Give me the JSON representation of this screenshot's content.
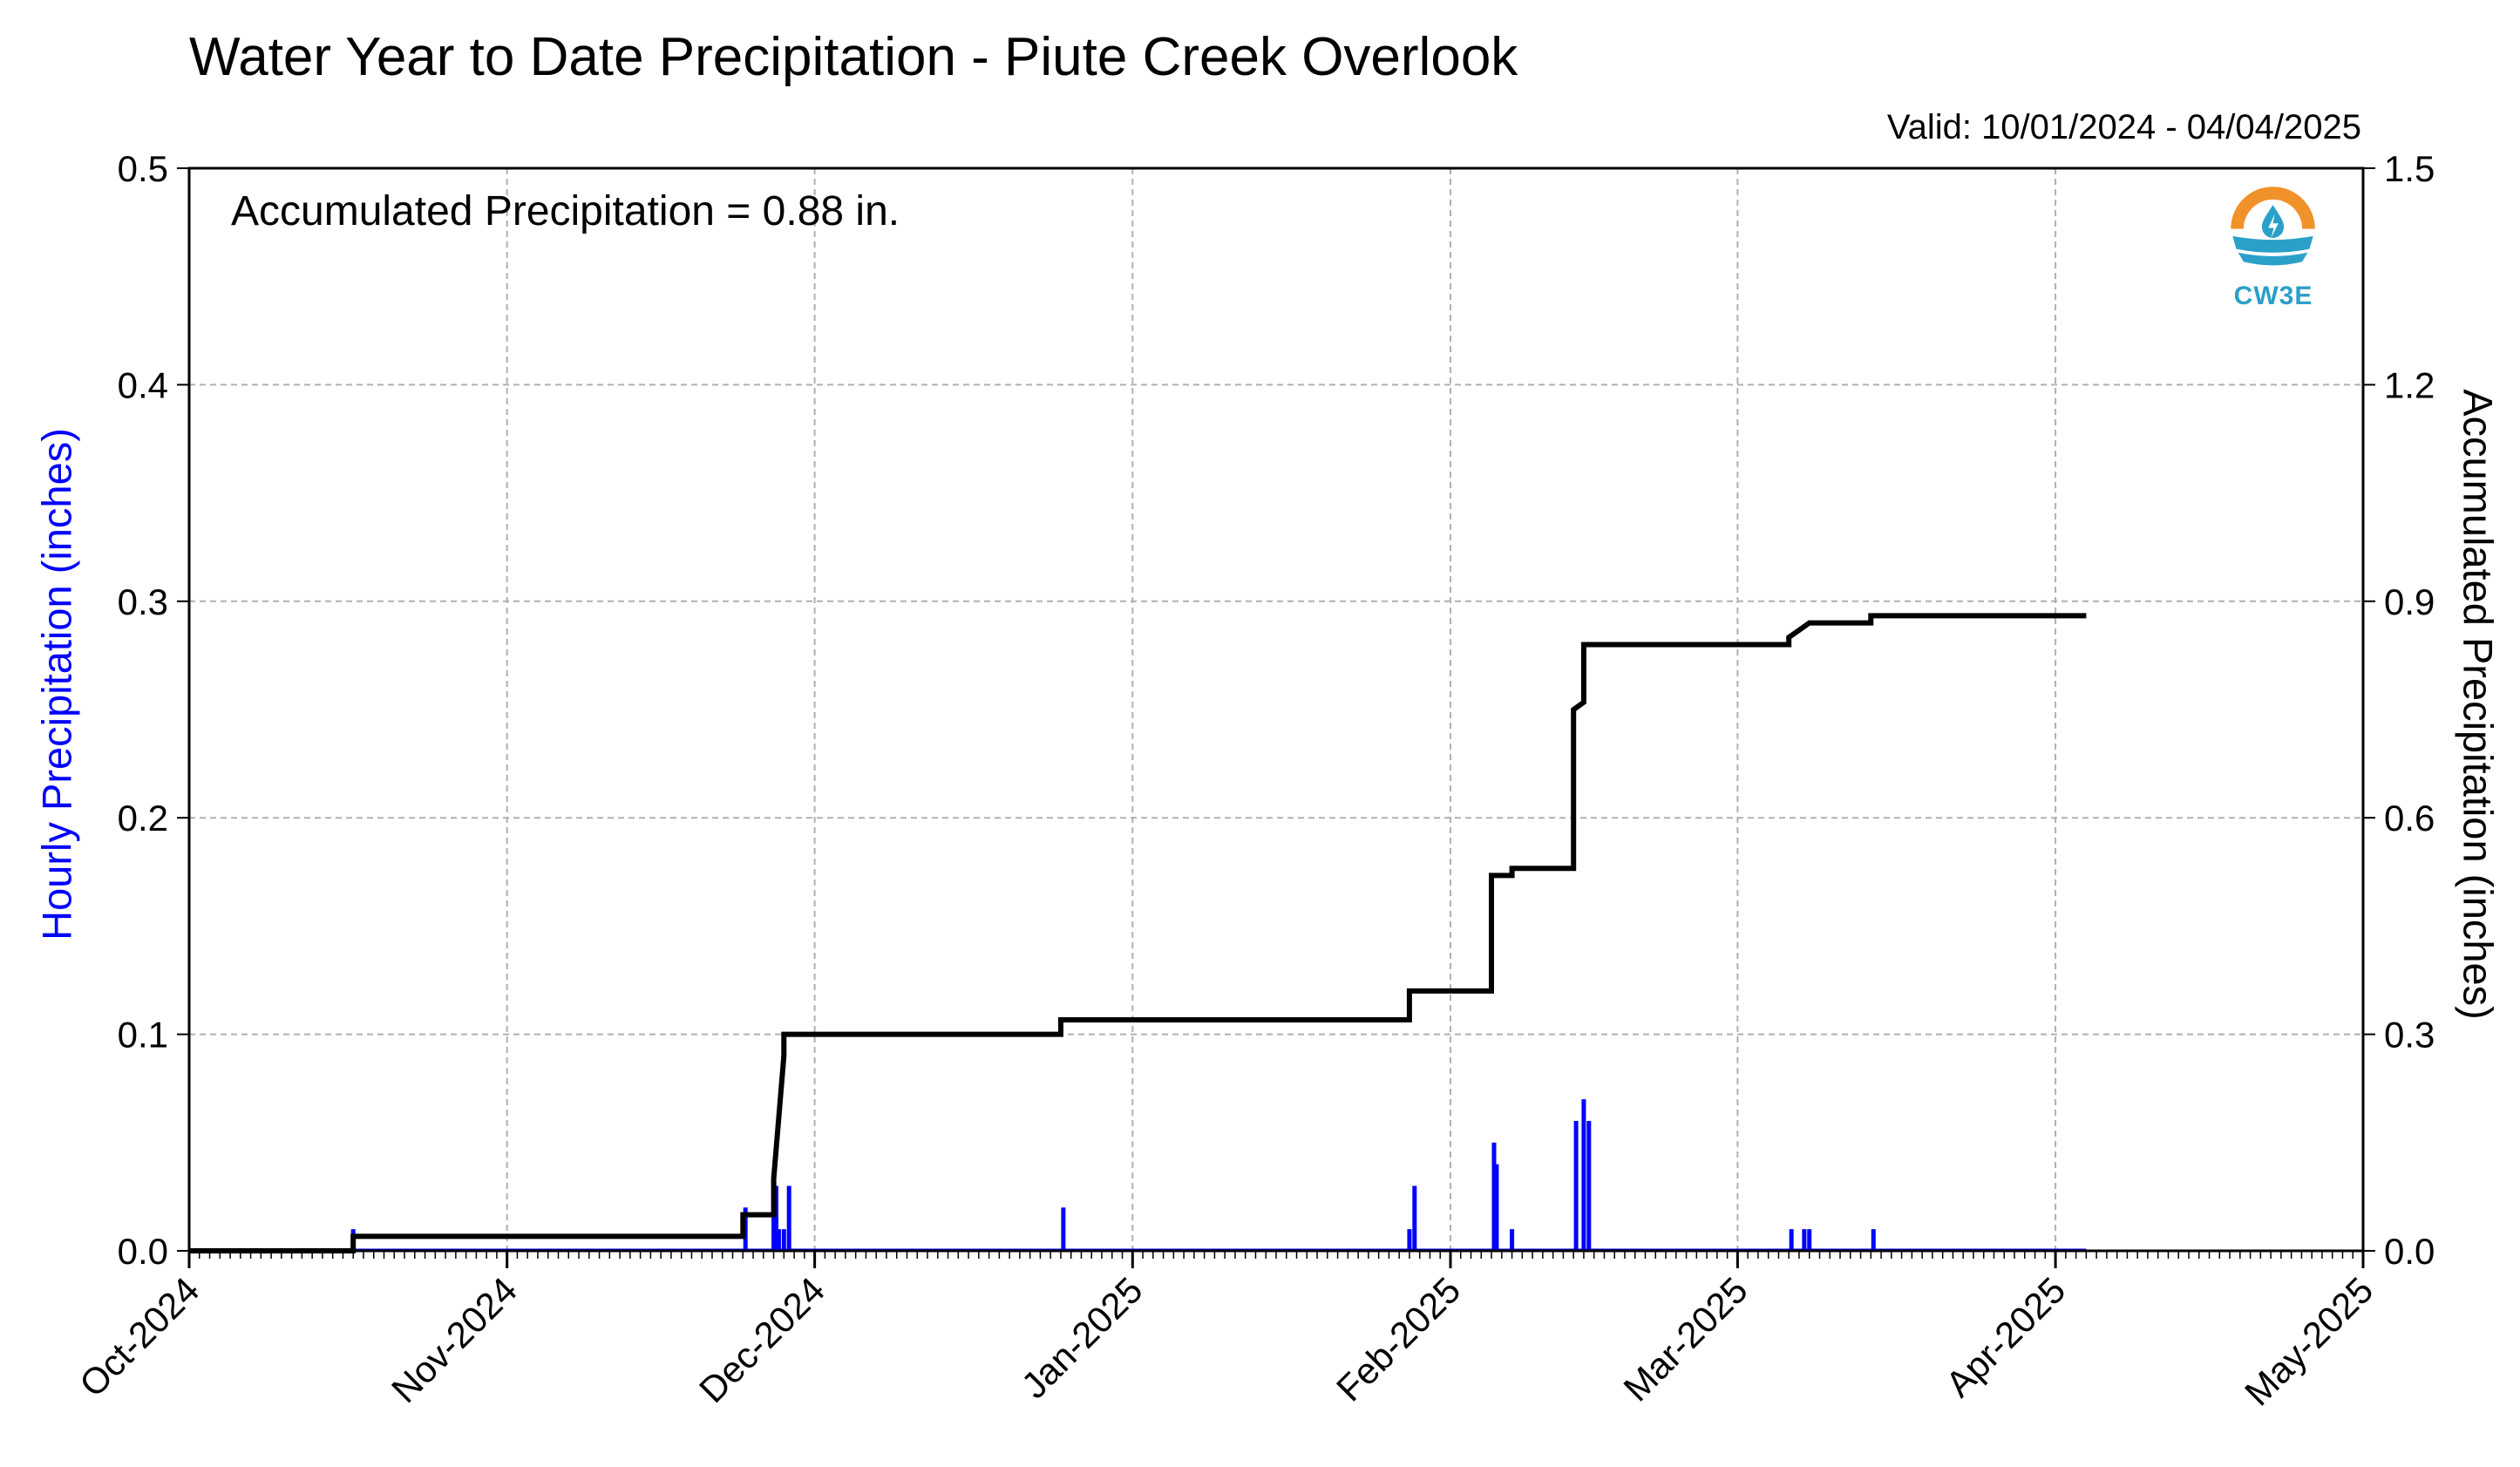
{
  "chart_data": {
    "type": "bar+line",
    "title": "Water Year to Date Precipitation - Piute Creek Overlook",
    "valid_label": "Valid: 10/01/2024 - 04/04/2025",
    "annotation": "Accumulated Precipitation = 0.88 in.",
    "ylabel_left": "Hourly Precipitation (inches)",
    "ylabel_right": "Accumulated Precipitation (inches)",
    "xlim": [
      "2024-10-01",
      "2025-05-01"
    ],
    "ylim_left": [
      0,
      0.5
    ],
    "ylim_right": [
      0,
      1.5
    ],
    "x_ticks": [
      "Oct-2024",
      "Nov-2024",
      "Dec-2024",
      "Jan-2025",
      "Feb-2025",
      "Mar-2025",
      "Apr-2025",
      "May-2025"
    ],
    "x_tick_dates": [
      "2024-10-01",
      "2024-11-01",
      "2024-12-01",
      "2025-01-01",
      "2025-02-01",
      "2025-03-01",
      "2025-04-01",
      "2025-05-01"
    ],
    "y_ticks_left": [
      "0.0",
      "0.1",
      "0.2",
      "0.3",
      "0.4",
      "0.5"
    ],
    "y_ticks_right": [
      "0.0",
      "0.3",
      "0.6",
      "0.9",
      "1.2",
      "1.5"
    ],
    "grid": true,
    "series": [
      {
        "name": "Hourly Precipitation",
        "axis": "left",
        "color": "#0000ff",
        "points": [
          [
            "2024-10-17",
            0.01
          ],
          [
            "2024-11-24",
            0.02
          ],
          [
            "2024-11-27",
            0.01
          ],
          [
            "2024-11-27",
            0.02
          ],
          [
            "2024-11-27",
            0.03
          ],
          [
            "2024-11-28",
            0.03
          ],
          [
            "2024-11-28",
            0.01
          ],
          [
            "2024-12-25",
            0.02
          ],
          [
            "2025-01-28",
            0.03
          ],
          [
            "2025-01-28",
            0.01
          ],
          [
            "2025-02-05",
            0.05
          ],
          [
            "2025-02-05",
            0.04
          ],
          [
            "2025-02-07",
            0.01
          ],
          [
            "2025-02-13",
            0.06
          ],
          [
            "2025-02-14",
            0.06
          ],
          [
            "2025-02-14",
            0.07
          ],
          [
            "2025-03-06",
            0.01
          ],
          [
            "2025-03-07",
            0.01
          ],
          [
            "2025-03-08",
            0.01
          ],
          [
            "2025-03-14",
            0.01
          ]
        ]
      },
      {
        "name": "Accumulated Precipitation",
        "axis": "right",
        "color": "#000000",
        "points": [
          [
            "2024-10-01",
            0.0
          ],
          [
            "2024-10-17",
            0.0
          ],
          [
            "2024-10-17",
            0.02
          ],
          [
            "2024-11-24",
            0.02
          ],
          [
            "2024-11-24",
            0.05
          ],
          [
            "2024-11-27",
            0.05
          ],
          [
            "2024-11-27",
            0.08
          ],
          [
            "2024-11-27",
            0.1
          ],
          [
            "2024-11-28",
            0.27
          ],
          [
            "2024-11-28",
            0.3
          ],
          [
            "2024-12-25",
            0.3
          ],
          [
            "2024-12-25",
            0.32
          ],
          [
            "2025-01-28",
            0.32
          ],
          [
            "2025-01-28",
            0.36
          ],
          [
            "2025-02-05",
            0.36
          ],
          [
            "2025-02-05",
            0.45
          ],
          [
            "2025-02-05",
            0.52
          ],
          [
            "2025-02-07",
            0.52
          ],
          [
            "2025-02-07",
            0.53
          ],
          [
            "2025-02-13",
            0.53
          ],
          [
            "2025-02-13",
            0.62
          ],
          [
            "2025-02-13",
            0.75
          ],
          [
            "2025-02-14",
            0.76
          ],
          [
            "2025-02-14",
            0.84
          ],
          [
            "2025-03-06",
            0.84
          ],
          [
            "2025-03-06",
            0.85
          ],
          [
            "2025-03-07",
            0.86
          ],
          [
            "2025-03-08",
            0.87
          ],
          [
            "2025-03-14",
            0.87
          ],
          [
            "2025-03-14",
            0.88
          ],
          [
            "2025-04-04",
            0.88
          ]
        ]
      }
    ]
  },
  "logo": {
    "text": "CW3E",
    "colors": {
      "orange": "#f0912a",
      "blue": "#2aa0c8"
    }
  }
}
